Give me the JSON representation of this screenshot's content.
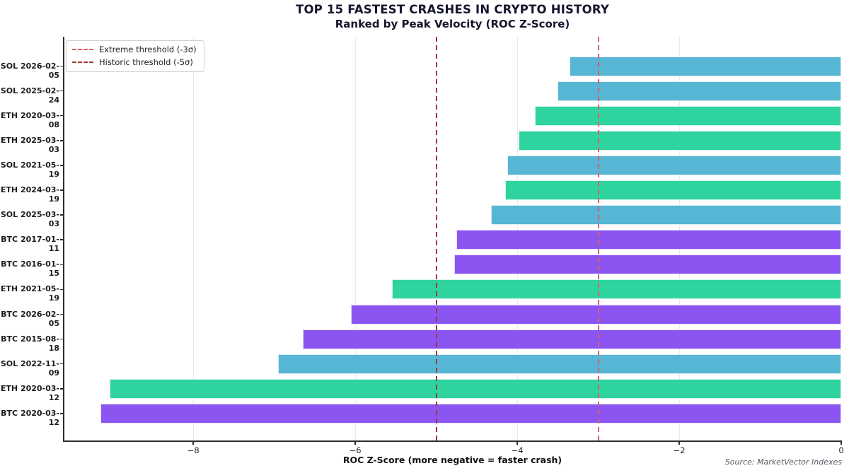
{
  "chart_data": {
    "type": "bar",
    "orientation": "horizontal",
    "title": "TOP 15 FASTEST CRASHES IN CRYPTO HISTORY",
    "subtitle": "Ranked by Peak Velocity (ROC Z-Score)",
    "xlabel": "ROC Z-Score (more negative = faster crash)",
    "source": "Source: MarketVector Indexes",
    "xlim": [
      -9.6,
      0
    ],
    "xticks": [
      {
        "value": -8,
        "label": "−8"
      },
      {
        "value": -6,
        "label": "−6"
      },
      {
        "value": -4,
        "label": "−4"
      },
      {
        "value": -2,
        "label": "−2"
      },
      {
        "value": 0,
        "label": "0"
      }
    ],
    "grid": "vertical",
    "legend_position": "upper-left",
    "asset_colors": {
      "SOL": "#56b6d4",
      "ETH": "#2fd3a0",
      "BTC": "#8a55f0"
    },
    "thresholds": [
      {
        "name": "extreme",
        "label": "Extreme threshold (-3σ)",
        "value": -3,
        "color": "#df5f5f"
      },
      {
        "name": "historic",
        "label": "Historic threshold (-5σ)",
        "value": -5,
        "color": "#9c3a32"
      }
    ],
    "bars": [
      {
        "label": "SOL 2026-02-05",
        "asset": "SOL",
        "value": -3.35
      },
      {
        "label": "SOL 2025-02-24",
        "asset": "SOL",
        "value": -3.5
      },
      {
        "label": "ETH 2020-03-08",
        "asset": "ETH",
        "value": -3.78
      },
      {
        "label": "ETH 2025-03-03",
        "asset": "ETH",
        "value": -3.98
      },
      {
        "label": "SOL 2021-05-19",
        "asset": "SOL",
        "value": -4.12
      },
      {
        "label": "ETH 2024-03-19",
        "asset": "ETH",
        "value": -4.15
      },
      {
        "label": "SOL 2025-03-03",
        "asset": "SOL",
        "value": -4.32
      },
      {
        "label": "BTC 2017-01-11",
        "asset": "BTC",
        "value": -4.75
      },
      {
        "label": "BTC 2016-01-15",
        "asset": "BTC",
        "value": -4.78
      },
      {
        "label": "ETH 2021-05-19",
        "asset": "ETH",
        "value": -5.55
      },
      {
        "label": "BTC 2026-02-05",
        "asset": "BTC",
        "value": -6.05
      },
      {
        "label": "BTC 2015-08-18",
        "asset": "BTC",
        "value": -6.65
      },
      {
        "label": "SOL 2022-11-09",
        "asset": "SOL",
        "value": -6.95
      },
      {
        "label": "ETH 2020-03-12",
        "asset": "ETH",
        "value": -9.03
      },
      {
        "label": "BTC 2020-03-12",
        "asset": "BTC",
        "value": -9.15
      }
    ]
  }
}
